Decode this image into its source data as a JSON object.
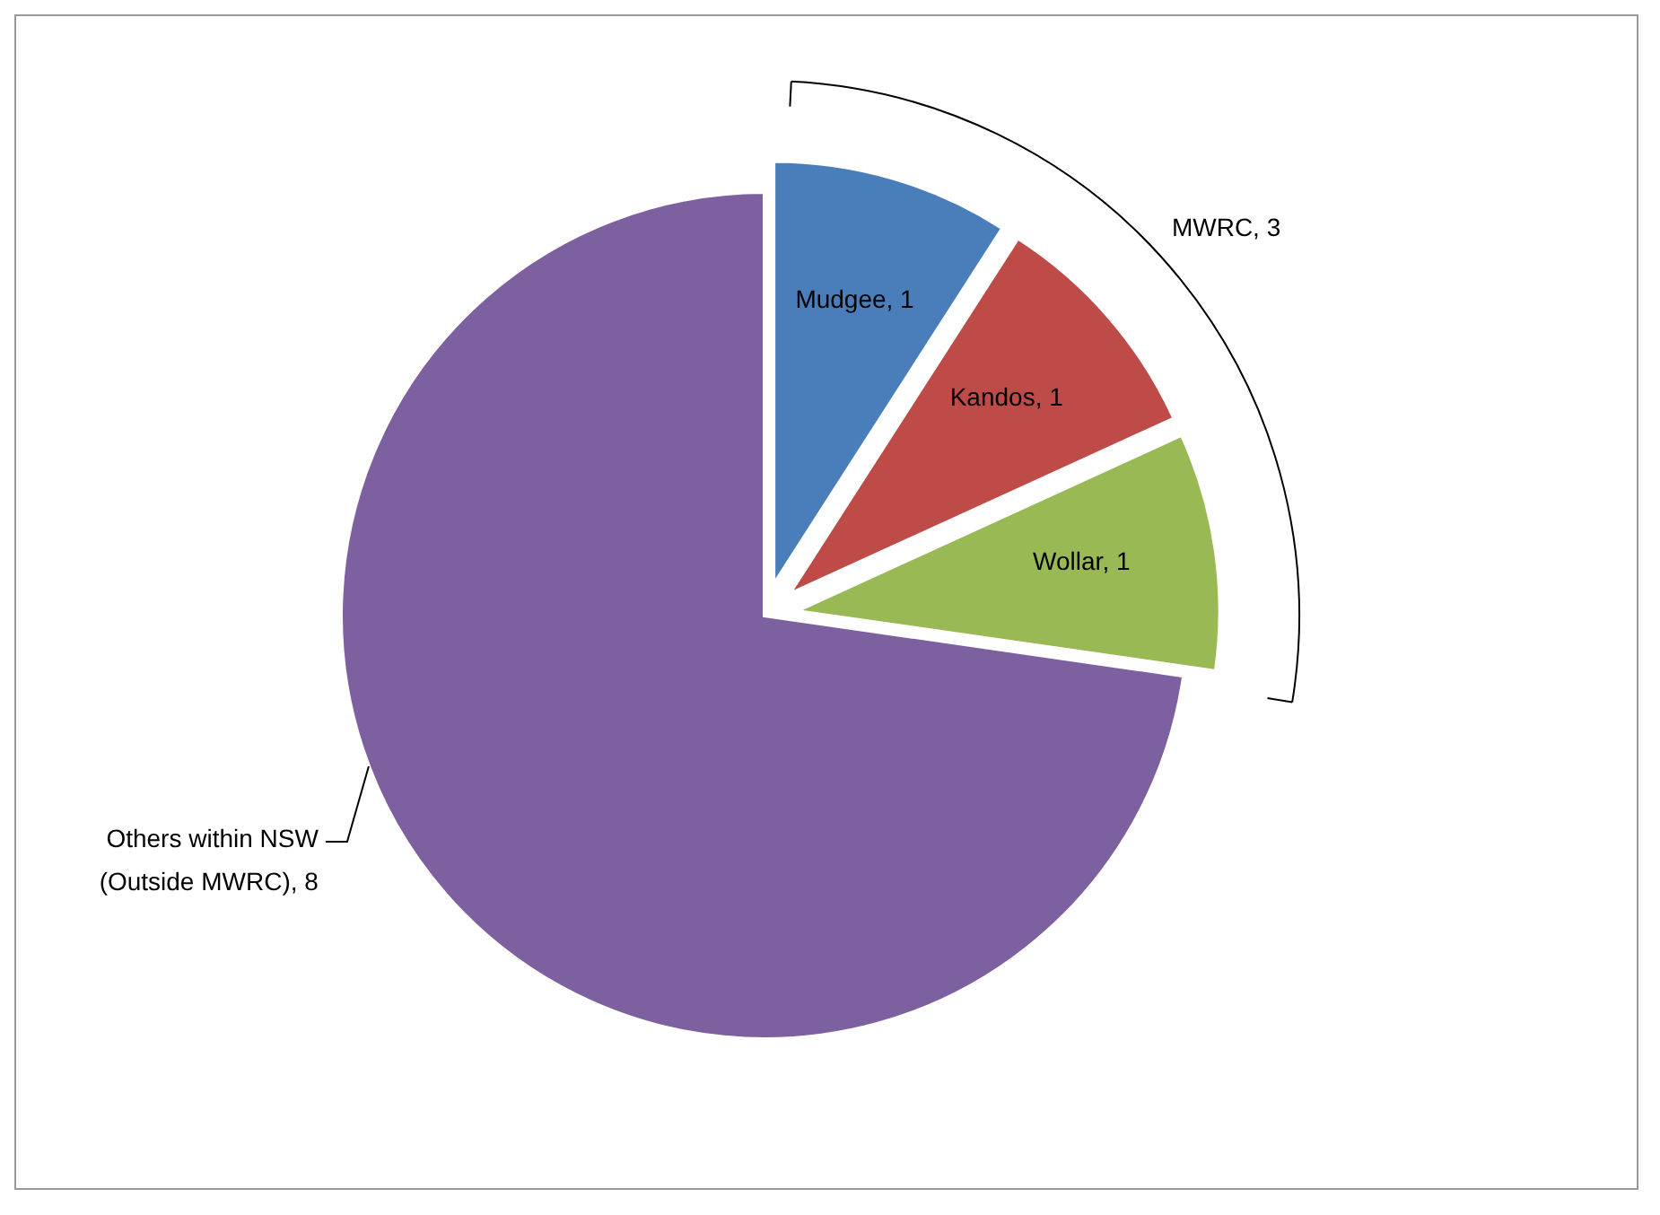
{
  "chart_data": {
    "type": "pie",
    "categories": [
      "Mudgee",
      "Kandos",
      "Wollar",
      "Others within NSW (Outside MWRC)"
    ],
    "values": [
      1,
      1,
      1,
      8
    ],
    "colors": [
      "#4a7ebb",
      "#be4b48",
      "#98b954",
      "#7d60a0"
    ],
    "value_labels": [
      ", 1",
      ", 1",
      ", 1",
      ", 8"
    ],
    "annotations": [
      "MWRC, 3"
    ]
  }
}
